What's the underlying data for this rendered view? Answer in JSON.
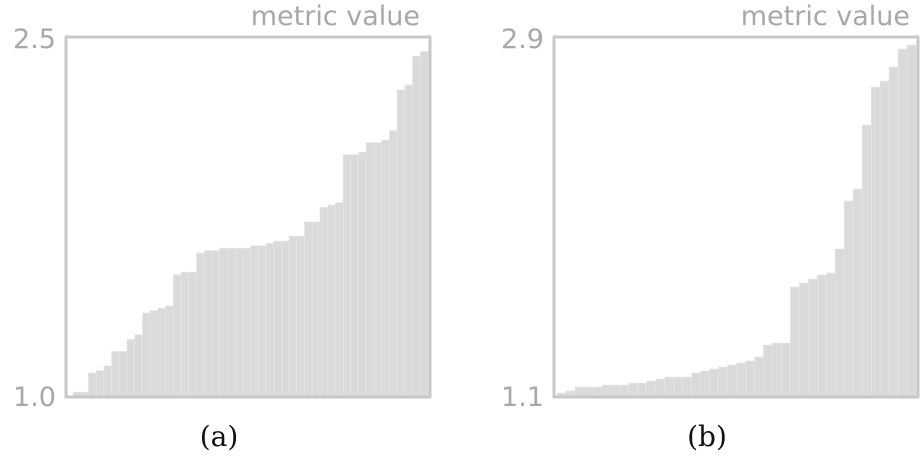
{
  "figure": {
    "colors": {
      "frame": "#c8c8c8",
      "bar": "#dadada",
      "bar_edge": "#e8e8e8",
      "text": "#a8a8a8",
      "caption": "#111111"
    }
  },
  "chart_data": [
    {
      "type": "bar",
      "panel_label": "(a)",
      "ylabel": "metric value",
      "ylim": [
        1.0,
        2.5
      ],
      "yticks": [
        "2.5",
        "1.0"
      ],
      "grid": false,
      "legend": "none",
      "values": [
        1.02,
        1.02,
        1.1,
        1.11,
        1.13,
        1.19,
        1.19,
        1.24,
        1.26,
        1.35,
        1.36,
        1.37,
        1.38,
        1.51,
        1.52,
        1.52,
        1.6,
        1.61,
        1.61,
        1.62,
        1.62,
        1.62,
        1.62,
        1.63,
        1.63,
        1.64,
        1.65,
        1.65,
        1.67,
        1.67,
        1.73,
        1.73,
        1.79,
        1.8,
        1.81,
        2.01,
        2.01,
        2.02,
        2.06,
        2.06,
        2.07,
        2.11,
        2.28,
        2.3,
        2.42,
        2.44
      ]
    },
    {
      "type": "bar",
      "panel_label": "(b)",
      "ylabel": "metric value",
      "ylim": [
        1.1,
        2.9
      ],
      "yticks": [
        "2.9",
        "1.1"
      ],
      "grid": false,
      "legend": "none",
      "values": [
        1.12,
        1.13,
        1.15,
        1.15,
        1.15,
        1.16,
        1.16,
        1.16,
        1.17,
        1.17,
        1.18,
        1.19,
        1.2,
        1.2,
        1.2,
        1.22,
        1.23,
        1.24,
        1.25,
        1.26,
        1.27,
        1.28,
        1.3,
        1.36,
        1.37,
        1.37,
        1.65,
        1.67,
        1.69,
        1.71,
        1.72,
        1.84,
        2.08,
        2.14,
        2.46,
        2.65,
        2.68,
        2.75,
        2.84,
        2.86
      ]
    }
  ]
}
